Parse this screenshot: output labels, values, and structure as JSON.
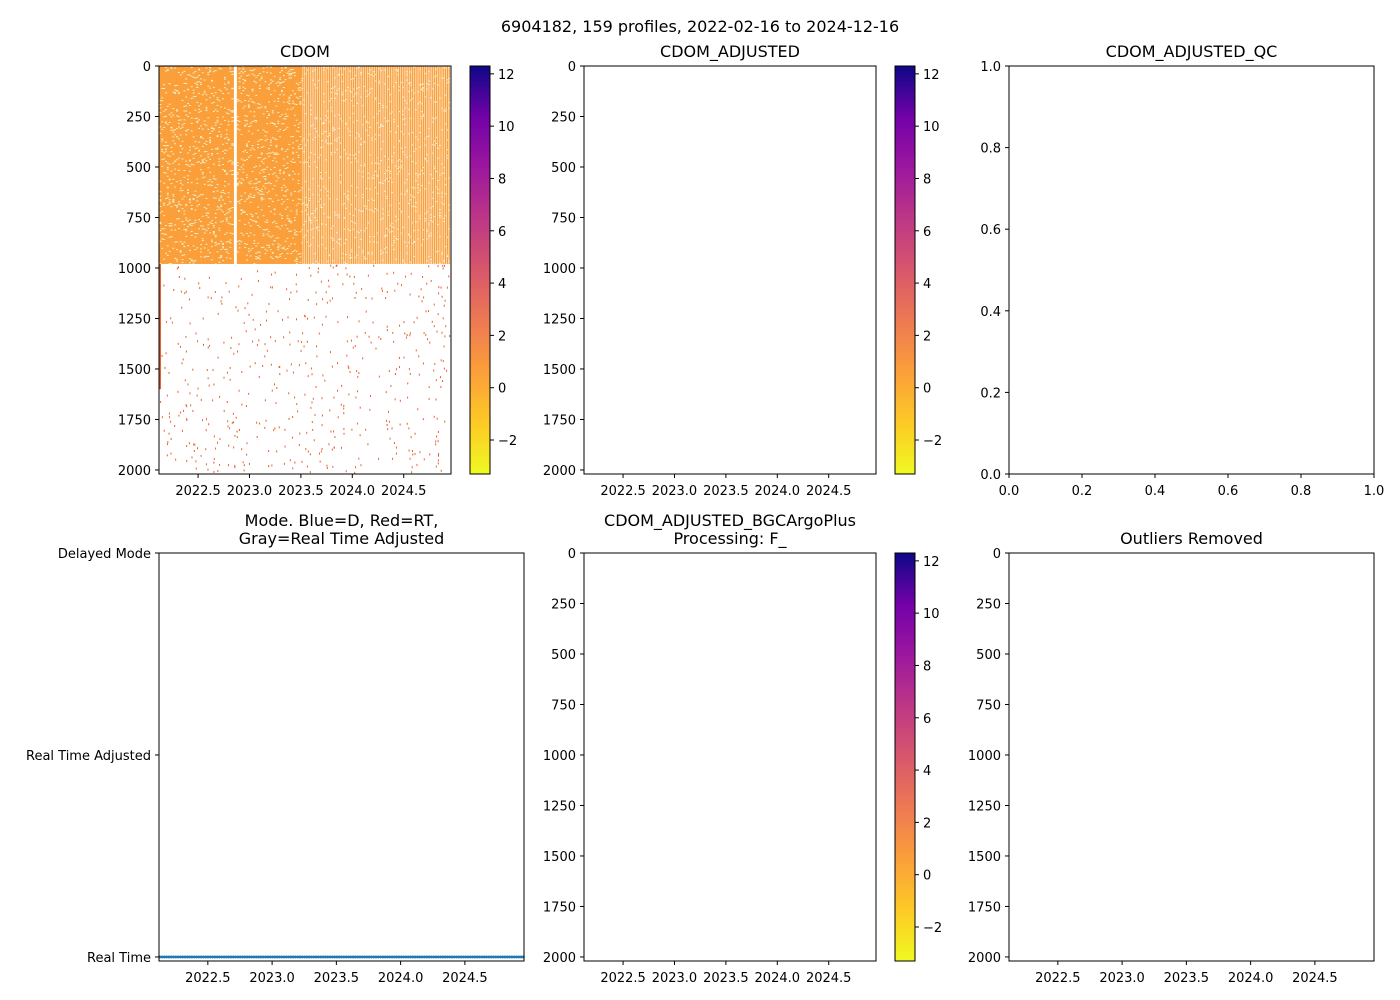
{
  "figure": {
    "suptitle": "6904182, 159 profiles, 2022-02-16 to 2024-12-16"
  },
  "chart_data": [
    {
      "id": "cdom",
      "type": "heatmap",
      "title": "CDOM",
      "x_range": [
        2022.12,
        2024.96
      ],
      "xticks": [
        2022.5,
        2023.0,
        2023.5,
        2024.0,
        2024.5
      ],
      "y_range": [
        2020,
        0
      ],
      "yticks": [
        0,
        250,
        500,
        750,
        1000,
        1250,
        1500,
        1750,
        2000
      ],
      "n_profiles": 159,
      "dense_depth_limit": 980,
      "dense_value": 0.0,
      "dense_cadence_change_x": 2023.5,
      "gap_profile_x": 2022.85,
      "colorbar": {
        "cmap": "plasma_r",
        "range": [
          -3.3,
          12.3
        ],
        "ticks": [
          -2,
          0,
          2,
          4,
          6,
          8,
          10,
          12
        ]
      }
    },
    {
      "id": "cdom_adj",
      "type": "heatmap",
      "title": "CDOM_ADJUSTED",
      "x_range": [
        2022.12,
        2024.96
      ],
      "xticks": [
        2022.5,
        2023.0,
        2023.5,
        2024.0,
        2024.5
      ],
      "y_range": [
        2020,
        0
      ],
      "yticks": [
        0,
        250,
        500,
        750,
        1000,
        1250,
        1500,
        1750,
        2000
      ],
      "values": [],
      "colorbar": {
        "cmap": "plasma_r",
        "range": [
          -3.3,
          12.3
        ],
        "ticks": [
          -2,
          0,
          2,
          4,
          6,
          8,
          10,
          12
        ]
      }
    },
    {
      "id": "cdom_adj_qc",
      "type": "scatter",
      "title": "CDOM_ADJUSTED_QC",
      "x_range": [
        0,
        1
      ],
      "xticks": [
        0.0,
        0.2,
        0.4,
        0.6,
        0.8,
        1.0
      ],
      "y_range": [
        0,
        1
      ],
      "yticks": [
        0.0,
        0.2,
        0.4,
        0.6,
        0.8,
        1.0
      ],
      "values": []
    },
    {
      "id": "mode",
      "type": "scatter",
      "title_lines": [
        "Mode. Blue=D, Red=RT,",
        "Gray=Real Time Adjusted"
      ],
      "x_range": [
        2022.12,
        2024.96
      ],
      "xticks": [
        2022.5,
        2023.0,
        2023.5,
        2024.0,
        2024.5
      ],
      "y_range": [
        -0.02,
        2.0
      ],
      "ytick_values": [
        0,
        1,
        2
      ],
      "ytick_labels": [
        "Real Time",
        "Real Time Adjusted",
        "Delayed Mode"
      ],
      "point_y": 0,
      "point_color": "#1f77b4",
      "n_points": 159,
      "time_range": [
        2022.125,
        2024.955
      ],
      "cadence_change_x": 2023.45
    },
    {
      "id": "bgc",
      "type": "heatmap",
      "title_lines": [
        "CDOM_ADJUSTED_BGCArgoPlus",
        "Processing: F_"
      ],
      "x_range": [
        2022.12,
        2024.96
      ],
      "xticks": [
        2022.5,
        2023.0,
        2023.5,
        2024.0,
        2024.5
      ],
      "y_range": [
        2020,
        0
      ],
      "yticks": [
        0,
        250,
        500,
        750,
        1000,
        1250,
        1500,
        1750,
        2000
      ],
      "values": [],
      "colorbar": {
        "cmap": "plasma_r",
        "range": [
          -3.3,
          12.3
        ],
        "ticks": [
          -2,
          0,
          2,
          4,
          6,
          8,
          10,
          12
        ]
      }
    },
    {
      "id": "outliers",
      "type": "heatmap",
      "title": "Outliers Removed",
      "x_range": [
        2022.12,
        2024.96
      ],
      "xticks": [
        2022.5,
        2023.0,
        2023.5,
        2024.0,
        2024.5
      ],
      "y_range": [
        2020,
        0
      ],
      "yticks": [
        0,
        250,
        500,
        750,
        1000,
        1250,
        1500,
        1750,
        2000
      ],
      "values": []
    }
  ]
}
